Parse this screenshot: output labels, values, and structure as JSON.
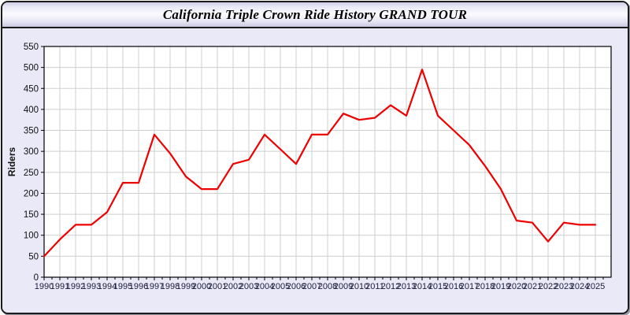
{
  "window": {
    "title": "California Triple Crown Ride History GRAND TOUR"
  },
  "colors": {
    "line": "#ee0000",
    "panel_bg": "#e9e9f8",
    "plot_bg": "#ffffff",
    "grid": "#cfcfcf",
    "axis": "#000000",
    "tick_label": "#20203e",
    "border": "#1b1b1b"
  },
  "chart_data": {
    "type": "line",
    "title": "California Triple Crown Ride History GRAND TOUR",
    "xlabel": "",
    "ylabel": "Riders",
    "ylim": [
      0,
      550
    ],
    "ytick_interval": 50,
    "y_ticks": [
      0,
      50,
      100,
      150,
      200,
      250,
      300,
      350,
      400,
      450,
      500,
      550
    ],
    "grid": true,
    "legend_position": "none",
    "x": [
      1990,
      1991,
      1992,
      1993,
      1994,
      1995,
      1996,
      1997,
      1998,
      1999,
      2000,
      2001,
      2002,
      2003,
      2004,
      2005,
      2006,
      2007,
      2008,
      2009,
      2010,
      2011,
      2012,
      2013,
      2014,
      2015,
      2016,
      2017,
      2018,
      2019,
      2020,
      2021,
      2022,
      2023,
      2024,
      2025
    ],
    "series": [
      {
        "name": "Riders",
        "color": "#ee0000",
        "values": [
          50,
          90,
          125,
          125,
          155,
          225,
          225,
          340,
          295,
          240,
          210,
          210,
          270,
          280,
          340,
          305,
          270,
          340,
          340,
          390,
          375,
          380,
          410,
          385,
          495,
          385,
          350,
          315,
          265,
          210,
          135,
          130,
          85,
          130,
          125,
          125
        ]
      }
    ]
  }
}
